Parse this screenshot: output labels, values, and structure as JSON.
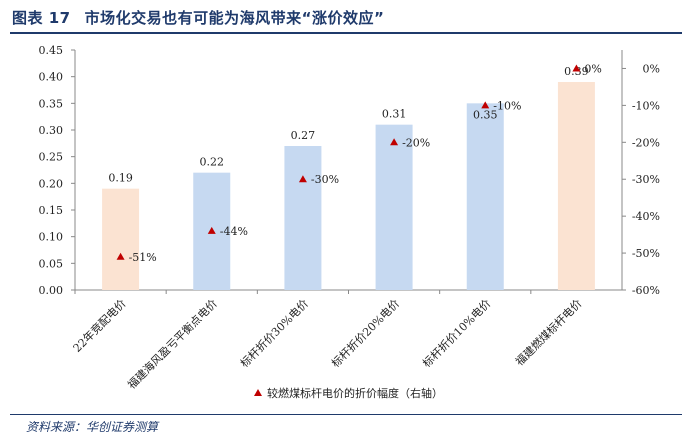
{
  "header": {
    "figure_number": "图表 17",
    "title": "市场化交易也有可能为海风带来“涨价效应”"
  },
  "footer": {
    "source": "资料来源：华创证券测算"
  },
  "colors": {
    "title": "#1f3a6b",
    "bar_orange": "#fbe3d2",
    "bar_blue": "#c6d9f1",
    "marker": "#c00000"
  },
  "chart_data": {
    "type": "bar",
    "categories": [
      "22年竞配电价",
      "福建海风盈亏平衡点电价",
      "标杆折价30%电价",
      "标杆折价20%电价",
      "标杆折价10%电价",
      "福建燃煤标杆电价"
    ],
    "values": [
      0.19,
      0.22,
      0.27,
      0.31,
      0.35,
      0.39
    ],
    "value_labels": [
      "0.19",
      "0.22",
      "0.27",
      "0.31",
      "0.35",
      "0.39"
    ],
    "bar_colors": [
      "#fbe3d2",
      "#c6d9f1",
      "#c6d9f1",
      "#c6d9f1",
      "#c6d9f1",
      "#fbe3d2"
    ],
    "ylim": [
      0,
      0.45
    ],
    "yticks": [
      "0.00",
      "0.05",
      "0.10",
      "0.15",
      "0.20",
      "0.25",
      "0.30",
      "0.35",
      "0.40",
      "0.45"
    ],
    "y2lim": [
      -60,
      5
    ],
    "y2ticks": [
      "0%",
      "-10%",
      "-20%",
      "-30%",
      "-40%",
      "-50%",
      "-60%"
    ],
    "series": [
      {
        "name": "较燃煤标杆电价的折价幅度（右轴）",
        "axis": "right",
        "marker": "triangle",
        "values": [
          -51,
          -44,
          -30,
          -20,
          -10,
          0
        ],
        "labels": [
          "-51%",
          "-44%",
          "-30%",
          "-20%",
          "-10%",
          "0%"
        ]
      }
    ],
    "legend": "bottom-center",
    "grid": false
  }
}
